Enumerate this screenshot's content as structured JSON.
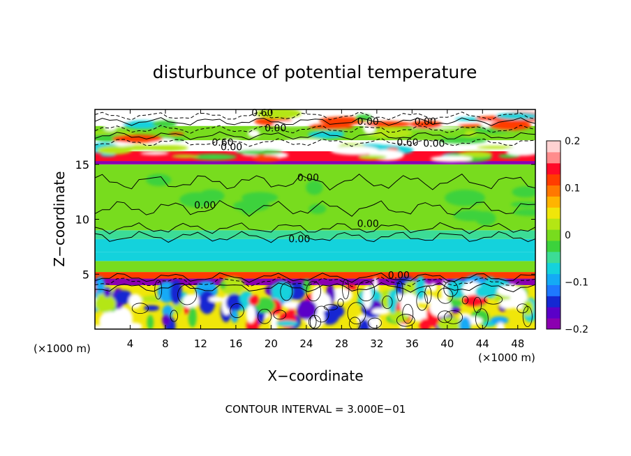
{
  "chart_data": {
    "type": "heatmap",
    "title": "disturbunce of potential temperature",
    "xlabel": "X−coordinate",
    "ylabel": "Z−coordinate",
    "x_unit_left": "(×1000 m)",
    "x_unit_right": "(×1000 m)",
    "footer": "CONTOUR INTERVAL = 3.000E−01",
    "xlim": [
      0,
      50
    ],
    "ylim": [
      0,
      20
    ],
    "x_ticks": [
      4,
      8,
      12,
      16,
      20,
      24,
      28,
      32,
      36,
      40,
      44,
      48
    ],
    "y_ticks": [
      5,
      10,
      15
    ],
    "colorbar": {
      "range": [
        -0.2,
        0.2
      ],
      "tick_values": [
        0.2,
        0.1,
        0,
        -0.1,
        -0.2
      ],
      "tick_labels": [
        "0.2",
        "0.1",
        "0",
        "−0.1",
        "−0.2"
      ],
      "colors": [
        "#8b00b0",
        "#5a00c8",
        "#1428d2",
        "#1e78ff",
        "#14aaf5",
        "#14d2dc",
        "#3cdc96",
        "#3cd23c",
        "#78dc1e",
        "#b4e614",
        "#f0e60a",
        "#ffb400",
        "#ff7800",
        "#ff3c00",
        "#ff0a28",
        "#ff8c8c",
        "#ffd2d2"
      ]
    },
    "bands": [
      {
        "z_range": [
          0,
          4
        ],
        "value": 0.05
      },
      {
        "z_range": [
          4,
          4.6
        ],
        "value": -0.2
      },
      {
        "z_range": [
          4.6,
          5.2
        ],
        "value": 0.12
      },
      {
        "z_range": [
          5.2,
          6.2
        ],
        "value": 0.0
      },
      {
        "z_range": [
          6.2,
          7.0
        ],
        "value": -0.06
      },
      {
        "z_range": [
          7.0,
          8.2
        ],
        "value": -0.08
      },
      {
        "z_range": [
          8.2,
          9.0
        ],
        "value": -0.05
      },
      {
        "z_range": [
          9.0,
          15.0
        ],
        "value": 0.0
      },
      {
        "z_range": [
          15.0,
          15.3
        ],
        "value": -0.2
      },
      {
        "z_range": [
          15.3,
          16.2
        ],
        "value": 0.15
      },
      {
        "z_range": [
          16.2,
          17.2
        ],
        "value": 0.25
      },
      {
        "z_range": [
          17.2,
          18.5
        ],
        "value": 0.0
      },
      {
        "z_range": [
          18.5,
          20
        ],
        "value": 0.25
      }
    ],
    "contour_labels": [
      {
        "text": "0.60",
        "x": 19.0,
        "z": 19.4
      },
      {
        "text": "0.00",
        "x": 20.5,
        "z": 18.0
      },
      {
        "text": "0.60",
        "x": 14.5,
        "z": 16.7
      },
      {
        "text": "0.00",
        "x": 15.5,
        "z": 16.3
      },
      {
        "text": "0.00",
        "x": 31.0,
        "z": 18.6
      },
      {
        "text": "0.00",
        "x": 37.5,
        "z": 18.6
      },
      {
        "text": "0.60",
        "x": 35.5,
        "z": 16.7
      },
      {
        "text": "0.00",
        "x": 38.5,
        "z": 16.6
      },
      {
        "text": "0.00",
        "x": 24.2,
        "z": 13.5
      },
      {
        "text": "0.00",
        "x": 12.5,
        "z": 11.0
      },
      {
        "text": "0.00",
        "x": 31.0,
        "z": 9.3
      },
      {
        "text": "0.00",
        "x": 23.2,
        "z": 7.9
      },
      {
        "text": "0.00",
        "x": 34.5,
        "z": 4.6
      }
    ]
  }
}
